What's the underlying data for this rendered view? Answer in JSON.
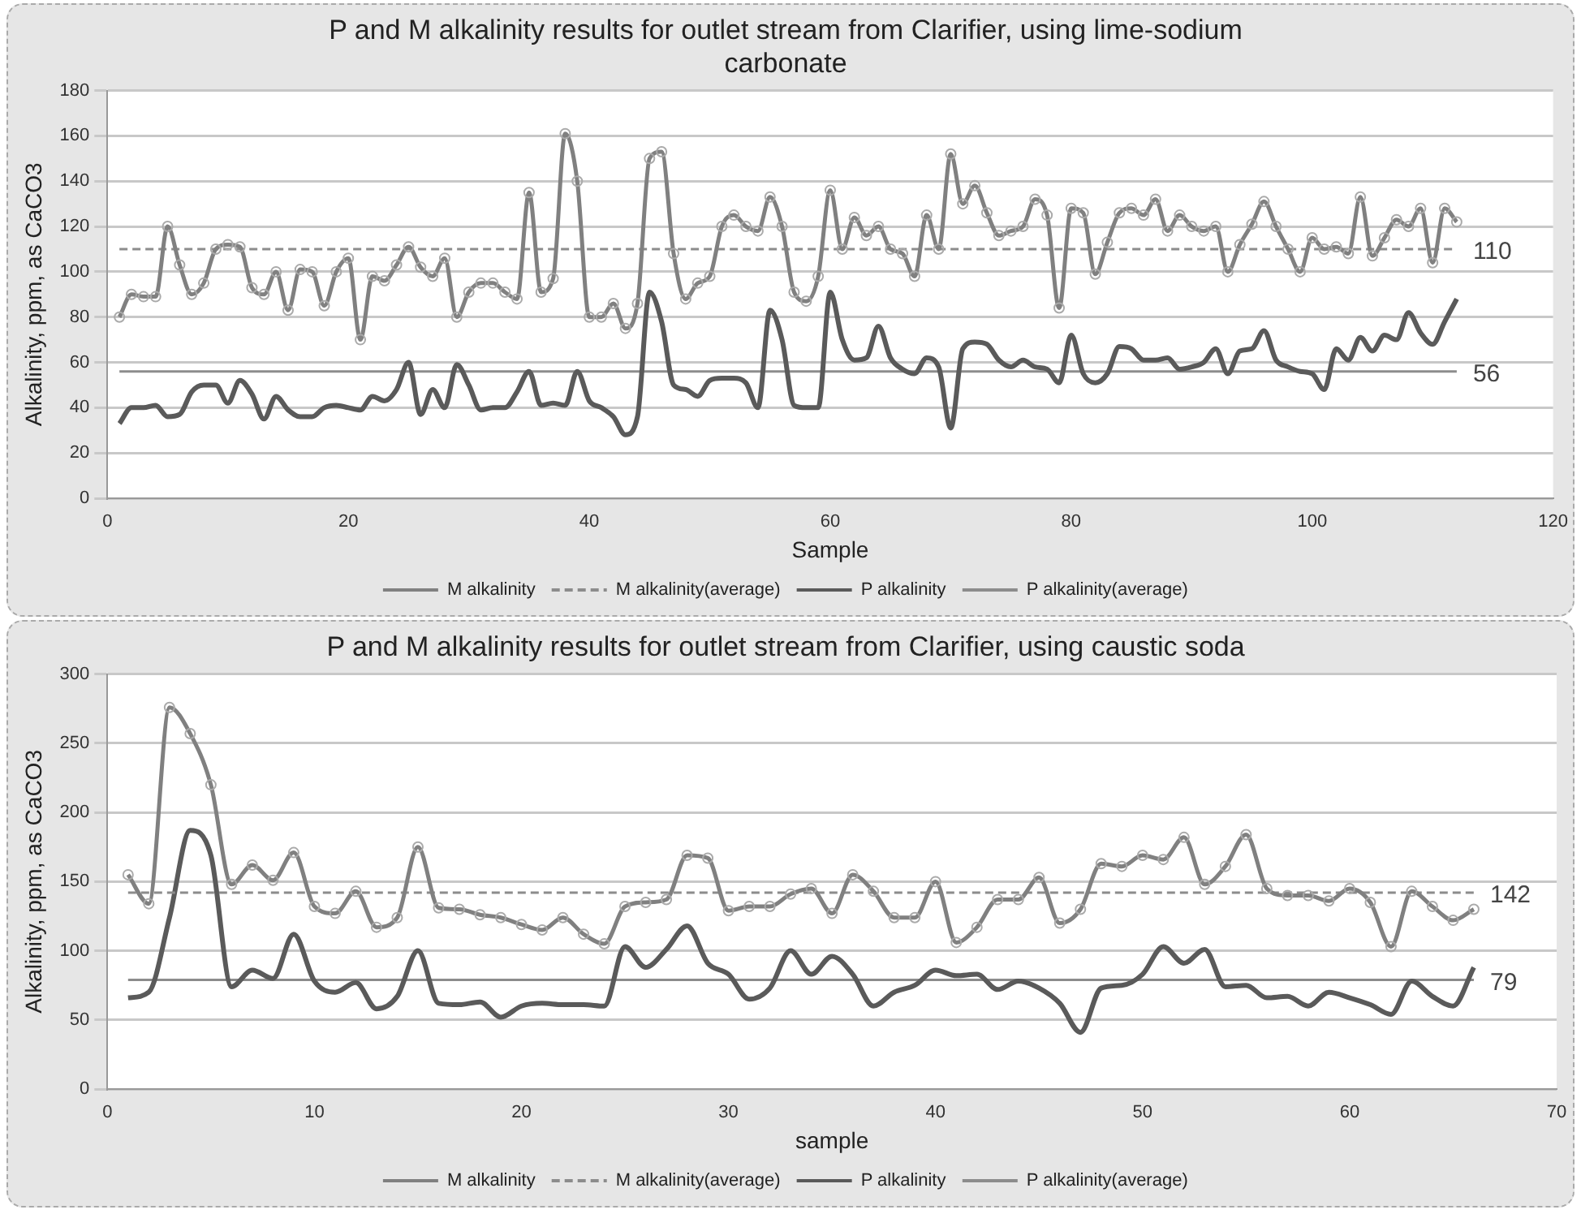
{
  "chart_data": [
    {
      "type": "line",
      "title": "P and M alkalinity results for outlet stream from Clarifier, using lime-sodium carbonate",
      "xlabel": "Sample",
      "ylabel": "Alkalinity, ppm, as CaCO3",
      "xlim": [
        0,
        120
      ],
      "xticks": [
        0,
        20,
        40,
        60,
        80,
        100,
        120
      ],
      "ylim": [
        0,
        180
      ],
      "yticks": [
        0,
        20,
        40,
        60,
        80,
        100,
        120,
        140,
        160,
        180
      ],
      "grid": "y",
      "legend": "bottom",
      "x": [
        1,
        2,
        3,
        4,
        5,
        6,
        7,
        8,
        9,
        10,
        11,
        12,
        13,
        14,
        15,
        16,
        17,
        18,
        19,
        20,
        21,
        22,
        23,
        24,
        25,
        26,
        27,
        28,
        29,
        30,
        31,
        32,
        33,
        34,
        35,
        36,
        37,
        38,
        39,
        40,
        41,
        42,
        43,
        44,
        45,
        46,
        47,
        48,
        49,
        50,
        51,
        52,
        53,
        54,
        55,
        56,
        57,
        58,
        59,
        60,
        61,
        62,
        63,
        64,
        65,
        66,
        67,
        68,
        69,
        70,
        71,
        72,
        73,
        74,
        75,
        76,
        77,
        78,
        79,
        80,
        81,
        82,
        83,
        84,
        85,
        86,
        87,
        88,
        89,
        90,
        91,
        92,
        93,
        94,
        95,
        96,
        97,
        98,
        99,
        100,
        101,
        102,
        103,
        104,
        105,
        106,
        107,
        108,
        109,
        110,
        111,
        112
      ],
      "series": [
        {
          "name": "M alkalinity",
          "color": "#808080",
          "marker": "circle",
          "line_style": "solid",
          "values": [
            80,
            90,
            89,
            89,
            120,
            103,
            90,
            95,
            110,
            112,
            111,
            93,
            90,
            100,
            83,
            101,
            100,
            85,
            100,
            106,
            70,
            98,
            96,
            103,
            111,
            102,
            98,
            106,
            80,
            91,
            95,
            95,
            91,
            88,
            135,
            91,
            97,
            161,
            140,
            80,
            80,
            86,
            75,
            86,
            150,
            153,
            108,
            88,
            95,
            98,
            120,
            125,
            120,
            118,
            133,
            120,
            91,
            87,
            98,
            136,
            110,
            124,
            116,
            120,
            110,
            108,
            98,
            125,
            110,
            152,
            130,
            138,
            126,
            116,
            118,
            120,
            132,
            125,
            84,
            128,
            126,
            99,
            113,
            126,
            128,
            125,
            132,
            118,
            125,
            120,
            118,
            120,
            100,
            112,
            121,
            131,
            120,
            110,
            100,
            115,
            110,
            111,
            108,
            133,
            107,
            115,
            123,
            120,
            128,
            104,
            128,
            122
          ]
        },
        {
          "name": "M alkalinity(average)",
          "color": "#8c8c8c",
          "marker": "none",
          "line_style": "dashed",
          "x": [
            1,
            112
          ],
          "values": [
            110,
            110
          ],
          "value_labels": [
            null,
            "110"
          ]
        },
        {
          "name": "P alkalinity",
          "color": "#5a5a5a",
          "marker": "none",
          "line_style": "solid",
          "values": [
            33,
            40,
            40,
            41,
            36,
            37,
            47,
            50,
            50,
            42,
            52,
            46,
            35,
            45,
            39,
            36,
            36,
            40,
            41,
            40,
            39,
            45,
            43,
            48,
            60,
            37,
            48,
            40,
            59,
            50,
            39,
            40,
            40,
            47,
            56,
            41,
            42,
            41,
            56,
            43,
            40,
            36,
            28,
            36,
            91,
            78,
            50,
            48,
            45,
            52,
            53,
            53,
            51,
            40,
            83,
            70,
            41,
            40,
            40,
            91,
            70,
            61,
            62,
            76,
            62,
            57,
            55,
            62,
            58,
            31,
            66,
            69,
            68,
            61,
            58,
            61,
            58,
            57,
            51,
            72,
            55,
            51,
            55,
            67,
            66,
            61,
            61,
            62,
            57,
            58,
            60,
            66,
            55,
            65,
            66,
            74,
            61,
            58,
            56,
            55,
            48,
            66,
            61,
            71,
            65,
            72,
            70,
            82,
            73,
            68,
            78,
            88
          ]
        },
        {
          "name": "P alkalinity(average)",
          "color": "#8c8c8c",
          "marker": "none",
          "line_style": "solid",
          "x": [
            1,
            112
          ],
          "values": [
            56,
            56
          ],
          "value_labels": [
            null,
            "56"
          ]
        }
      ]
    },
    {
      "type": "line",
      "title": "P and M alkalinity results for outlet stream from Clarifier, using caustic soda",
      "xlabel": "sample",
      "ylabel": "Alkalinity, ppm, as CaCO3",
      "xlim": [
        0,
        70
      ],
      "xticks": [
        0,
        10,
        20,
        30,
        40,
        50,
        60,
        70
      ],
      "ylim": [
        0,
        300
      ],
      "yticks": [
        0,
        50,
        100,
        150,
        200,
        250,
        300
      ],
      "grid": "y",
      "legend": "bottom",
      "x": [
        1,
        2,
        3,
        4,
        5,
        6,
        7,
        8,
        9,
        10,
        11,
        12,
        13,
        14,
        15,
        16,
        17,
        18,
        19,
        20,
        21,
        22,
        23,
        24,
        25,
        26,
        27,
        28,
        29,
        30,
        31,
        32,
        33,
        34,
        35,
        36,
        37,
        38,
        39,
        40,
        41,
        42,
        43,
        44,
        45,
        46,
        47,
        48,
        49,
        50,
        51,
        52,
        53,
        54,
        55,
        56,
        57,
        58,
        59,
        60,
        61,
        62,
        63,
        64,
        65,
        66
      ],
      "series": [
        {
          "name": "M alkalinity",
          "color": "#808080",
          "marker": "circle",
          "line_style": "solid",
          "values": [
            155,
            134,
            276,
            257,
            220,
            148,
            162,
            151,
            171,
            132,
            127,
            143,
            117,
            124,
            175,
            131,
            130,
            126,
            124,
            119,
            115,
            124,
            112,
            105,
            132,
            135,
            137,
            169,
            167,
            129,
            132,
            132,
            141,
            145,
            127,
            155,
            143,
            124,
            124,
            150,
            106,
            117,
            137,
            137,
            153,
            120,
            130,
            163,
            161,
            169,
            166,
            182,
            148,
            161,
            184,
            145,
            140,
            140,
            136,
            145,
            135,
            103,
            143,
            132,
            122,
            130
          ]
        },
        {
          "name": "M alkalinity(average)",
          "color": "#8c8c8c",
          "marker": "none",
          "line_style": "dashed",
          "x": [
            1,
            66
          ],
          "values": [
            142,
            142
          ],
          "value_labels": [
            null,
            "142"
          ]
        },
        {
          "name": "P alkalinity",
          "color": "#5a5a5a",
          "marker": "none",
          "line_style": "solid",
          "values": [
            66,
            70,
            124,
            187,
            169,
            74,
            86,
            80,
            112,
            78,
            70,
            77,
            58,
            67,
            100,
            62,
            61,
            63,
            52,
            60,
            62,
            61,
            61,
            60,
            103,
            88,
            101,
            118,
            91,
            83,
            65,
            73,
            100,
            83,
            96,
            83,
            60,
            70,
            75,
            86,
            82,
            83,
            72,
            78,
            73,
            62,
            41,
            73,
            75,
            83,
            103,
            91,
            101,
            74,
            75,
            66,
            67,
            60,
            70,
            66,
            61,
            54,
            78,
            67,
            60,
            88
          ]
        },
        {
          "name": "P alkalinity(average)",
          "color": "#8c8c8c",
          "marker": "none",
          "line_style": "solid",
          "x": [
            1,
            66
          ],
          "values": [
            79,
            79
          ],
          "value_labels": [
            null,
            "79"
          ]
        }
      ]
    }
  ]
}
